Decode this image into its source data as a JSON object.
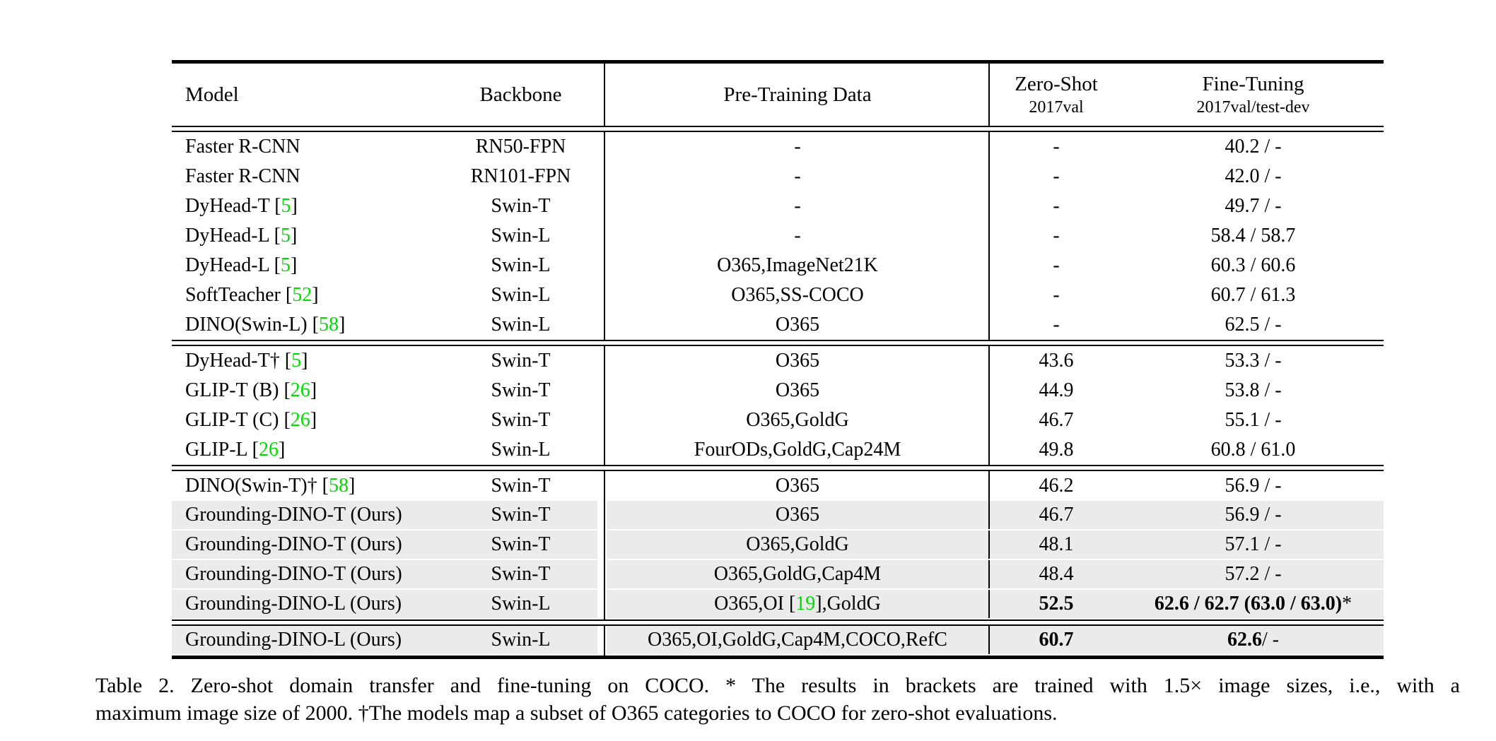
{
  "colors": {
    "highlight": "#ebebeb",
    "citation_green": "#00dc00",
    "rule_black": "#000000"
  },
  "table": {
    "headers": {
      "model": "Model",
      "backbone": "Backbone",
      "pretraining": "Pre-Training Data",
      "zeroshot_line1": "Zero-Shot",
      "zeroshot_line2": "2017val",
      "finetuning_line1": "Fine-Tuning",
      "finetuning_line2": "2017val/test-dev"
    },
    "groups": [
      {
        "rows": [
          {
            "hl": false,
            "model": [
              {
                "t": "Faster R-CNN"
              }
            ],
            "backbone": [
              {
                "t": "RN50-FPN"
              }
            ],
            "pretrain": [
              {
                "t": "-"
              }
            ],
            "zs": [
              {
                "t": "-"
              }
            ],
            "ft": [
              {
                "t": "40.2 / -"
              }
            ]
          },
          {
            "hl": false,
            "model": [
              {
                "t": "Faster R-CNN"
              }
            ],
            "backbone": [
              {
                "t": "RN101-FPN"
              }
            ],
            "pretrain": [
              {
                "t": "-"
              }
            ],
            "zs": [
              {
                "t": "-"
              }
            ],
            "ft": [
              {
                "t": "42.0 / -"
              }
            ]
          },
          {
            "hl": false,
            "model": [
              {
                "t": "DyHead-T ["
              },
              {
                "t": "5",
                "g": true
              },
              {
                "t": "]"
              }
            ],
            "backbone": [
              {
                "t": "Swin-T"
              }
            ],
            "pretrain": [
              {
                "t": "-"
              }
            ],
            "zs": [
              {
                "t": "-"
              }
            ],
            "ft": [
              {
                "t": "49.7 / -"
              }
            ]
          },
          {
            "hl": false,
            "model": [
              {
                "t": "DyHead-L ["
              },
              {
                "t": "5",
                "g": true
              },
              {
                "t": "]"
              }
            ],
            "backbone": [
              {
                "t": "Swin-L"
              }
            ],
            "pretrain": [
              {
                "t": "-"
              }
            ],
            "zs": [
              {
                "t": "-"
              }
            ],
            "ft": [
              {
                "t": "58.4 / 58.7"
              }
            ]
          },
          {
            "hl": false,
            "model": [
              {
                "t": "DyHead-L ["
              },
              {
                "t": "5",
                "g": true
              },
              {
                "t": "]"
              }
            ],
            "backbone": [
              {
                "t": "Swin-L"
              }
            ],
            "pretrain": [
              {
                "t": "O365,ImageNet21K"
              }
            ],
            "zs": [
              {
                "t": "-"
              }
            ],
            "ft": [
              {
                "t": "60.3 / 60.6"
              }
            ]
          },
          {
            "hl": false,
            "model": [
              {
                "t": "SoftTeacher ["
              },
              {
                "t": "52",
                "g": true
              },
              {
                "t": "]"
              }
            ],
            "backbone": [
              {
                "t": "Swin-L"
              }
            ],
            "pretrain": [
              {
                "t": "O365,SS-COCO"
              }
            ],
            "zs": [
              {
                "t": "-"
              }
            ],
            "ft": [
              {
                "t": "60.7 / 61.3"
              }
            ]
          },
          {
            "hl": false,
            "model": [
              {
                "t": "DINO(Swin-L) ["
              },
              {
                "t": "58",
                "g": true
              },
              {
                "t": "]"
              }
            ],
            "backbone": [
              {
                "t": "Swin-L"
              }
            ],
            "pretrain": [
              {
                "t": "O365"
              }
            ],
            "zs": [
              {
                "t": "-"
              }
            ],
            "ft": [
              {
                "t": "62.5 / -"
              }
            ]
          }
        ]
      },
      {
        "rows": [
          {
            "hl": false,
            "model": [
              {
                "t": "DyHead-T† ["
              },
              {
                "t": "5",
                "g": true
              },
              {
                "t": "]"
              }
            ],
            "backbone": [
              {
                "t": "Swin-T"
              }
            ],
            "pretrain": [
              {
                "t": "O365"
              }
            ],
            "zs": [
              {
                "t": "43.6"
              }
            ],
            "ft": [
              {
                "t": "53.3 / -"
              }
            ]
          },
          {
            "hl": false,
            "model": [
              {
                "t": "GLIP-T (B) ["
              },
              {
                "t": "26",
                "g": true
              },
              {
                "t": "]"
              }
            ],
            "backbone": [
              {
                "t": "Swin-T"
              }
            ],
            "pretrain": [
              {
                "t": "O365"
              }
            ],
            "zs": [
              {
                "t": "44.9"
              }
            ],
            "ft": [
              {
                "t": "53.8 / -"
              }
            ]
          },
          {
            "hl": false,
            "model": [
              {
                "t": "GLIP-T (C) ["
              },
              {
                "t": "26",
                "g": true
              },
              {
                "t": "]"
              }
            ],
            "backbone": [
              {
                "t": "Swin-T"
              }
            ],
            "pretrain": [
              {
                "t": "O365,GoldG"
              }
            ],
            "zs": [
              {
                "t": "46.7"
              }
            ],
            "ft": [
              {
                "t": "55.1 / -"
              }
            ]
          },
          {
            "hl": false,
            "model": [
              {
                "t": "GLIP-L ["
              },
              {
                "t": "26",
                "g": true
              },
              {
                "t": "]"
              }
            ],
            "backbone": [
              {
                "t": "Swin-L"
              }
            ],
            "pretrain": [
              {
                "t": "FourODs,GoldG,Cap24M"
              }
            ],
            "zs": [
              {
                "t": "49.8"
              }
            ],
            "ft": [
              {
                "t": "60.8 / 61.0"
              }
            ]
          }
        ]
      },
      {
        "rows": [
          {
            "hl": false,
            "model": [
              {
                "t": "DINO(Swin-T)† ["
              },
              {
                "t": "58",
                "g": true
              },
              {
                "t": "]"
              }
            ],
            "backbone": [
              {
                "t": "Swin-T"
              }
            ],
            "pretrain": [
              {
                "t": "O365"
              }
            ],
            "zs": [
              {
                "t": "46.2"
              }
            ],
            "ft": [
              {
                "t": "56.9 / -"
              }
            ]
          },
          {
            "hl": true,
            "model": [
              {
                "t": "Grounding-DINO-T (Ours)"
              }
            ],
            "backbone": [
              {
                "t": "Swin-T"
              }
            ],
            "pretrain": [
              {
                "t": "O365"
              }
            ],
            "zs": [
              {
                "t": "46.7"
              }
            ],
            "ft": [
              {
                "t": "56.9 / -"
              }
            ]
          },
          {
            "hl": true,
            "model": [
              {
                "t": "Grounding-DINO-T (Ours)"
              }
            ],
            "backbone": [
              {
                "t": "Swin-T"
              }
            ],
            "pretrain": [
              {
                "t": "O365,GoldG"
              }
            ],
            "zs": [
              {
                "t": "48.1"
              }
            ],
            "ft": [
              {
                "t": "57.1 / -"
              }
            ]
          },
          {
            "hl": true,
            "model": [
              {
                "t": "Grounding-DINO-T (Ours)"
              }
            ],
            "backbone": [
              {
                "t": "Swin-T"
              }
            ],
            "pretrain": [
              {
                "t": "O365,GoldG,Cap4M"
              }
            ],
            "zs": [
              {
                "t": "48.4"
              }
            ],
            "ft": [
              {
                "t": "57.2 / -"
              }
            ]
          },
          {
            "hl": true,
            "model": [
              {
                "t": "Grounding-DINO-L (Ours)"
              }
            ],
            "backbone": [
              {
                "t": "Swin-L"
              }
            ],
            "pretrain": [
              {
                "t": "O365,OI ["
              },
              {
                "t": "19",
                "g": true
              },
              {
                "t": "],GoldG"
              }
            ],
            "zs": [
              {
                "t": "52.5",
                "b": true
              }
            ],
            "ft": [
              {
                "t": "62.6 / 62.7 (63.0 / 63.0)",
                "b": true
              },
              {
                "t": "*"
              }
            ]
          }
        ]
      },
      {
        "rows": [
          {
            "hl": true,
            "model": [
              {
                "t": "Grounding-DINO-L (Ours)"
              }
            ],
            "backbone": [
              {
                "t": "Swin-L"
              }
            ],
            "pretrain": [
              {
                "t": "O365,OI,GoldG,Cap4M,COCO,RefC"
              }
            ],
            "zs": [
              {
                "t": "60.7",
                "b": true
              }
            ],
            "ft": [
              {
                "t": "62.6",
                "b": true
              },
              {
                "t": " / -"
              }
            ]
          }
        ]
      }
    ]
  },
  "caption": {
    "line1": "Table 2.  Zero-shot domain transfer and fine-tuning on COCO. * The results in brackets are trained with 1.5× image sizes, i.e., with a",
    "line2": "maximum image size of 2000. †The models map a subset of O365 categories to COCO for zero-shot evaluations."
  }
}
